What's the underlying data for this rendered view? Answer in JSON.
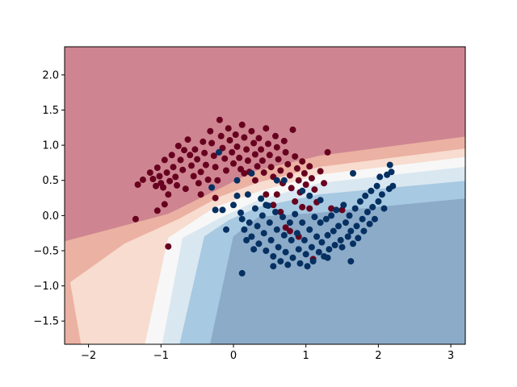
{
  "chart_data": {
    "type": "scatter",
    "title": "",
    "xlabel": "",
    "ylabel": "",
    "xlim": [
      -2.33,
      3.2
    ],
    "ylim": [
      -1.83,
      2.4
    ],
    "grid": false,
    "legend": "none",
    "x_ticks": [
      "−2",
      "−1",
      "0",
      "1",
      "2",
      "3"
    ],
    "x_tick_values": [
      -2,
      -1,
      0,
      1,
      2,
      3
    ],
    "y_ticks": [
      "−1.5",
      "−1.0",
      "−0.5",
      "0.0",
      "0.5",
      "1.0",
      "1.5",
      "2.0"
    ],
    "y_tick_values": [
      -1.5,
      -1.0,
      -0.5,
      0.0,
      0.5,
      1.0,
      1.5,
      2.0
    ],
    "decision_regions": [
      {
        "level": "dark red",
        "color": "#ce8591",
        "polygon": [
          [
            -2.33,
            2.4
          ],
          [
            3.2,
            2.4
          ],
          [
            3.2,
            1.12
          ],
          [
            1.2,
            0.85
          ],
          [
            0.3,
            0.63
          ],
          [
            -0.25,
            0.35
          ],
          [
            -0.9,
            0.02
          ],
          [
            -2.33,
            -0.37
          ]
        ]
      },
      {
        "level": "light red",
        "color": "#ebb1a2",
        "polygon": [
          [
            -2.33,
            -0.37
          ],
          [
            -0.9,
            0.02
          ],
          [
            -0.25,
            0.35
          ],
          [
            0.3,
            0.63
          ],
          [
            1.2,
            0.85
          ],
          [
            3.2,
            1.12
          ],
          [
            3.2,
            0.95
          ],
          [
            1.2,
            0.69
          ],
          [
            0.35,
            0.47
          ],
          [
            -0.2,
            0.26
          ],
          [
            -0.75,
            -0.05
          ],
          [
            -1.5,
            -0.4
          ],
          [
            -2.25,
            -0.95
          ],
          [
            -2.1,
            -1.83
          ],
          [
            -2.33,
            -1.83
          ]
        ]
      },
      {
        "level": "lightest red",
        "color": "#f7dccf",
        "polygon": [
          [
            -2.25,
            -0.95
          ],
          [
            -1.5,
            -0.4
          ],
          [
            -0.75,
            -0.05
          ],
          [
            -0.2,
            0.26
          ],
          [
            0.35,
            0.47
          ],
          [
            1.2,
            0.69
          ],
          [
            3.2,
            0.95
          ],
          [
            3.2,
            0.83
          ],
          [
            1.2,
            0.58
          ],
          [
            0.35,
            0.34
          ],
          [
            -0.25,
            0.12
          ],
          [
            -0.9,
            -0.32
          ],
          [
            -1.22,
            -1.83
          ],
          [
            -2.1,
            -1.83
          ]
        ]
      },
      {
        "level": "neutral",
        "color": "#f7f7f7",
        "polygon": [
          [
            -0.9,
            -0.32
          ],
          [
            -0.25,
            0.12
          ],
          [
            0.35,
            0.34
          ],
          [
            1.2,
            0.58
          ],
          [
            3.2,
            0.83
          ],
          [
            3.2,
            0.69
          ],
          [
            1.2,
            0.46
          ],
          [
            0.35,
            0.22
          ],
          [
            -0.15,
            -0.02
          ],
          [
            -0.7,
            -0.32
          ],
          [
            -0.98,
            -1.83
          ],
          [
            -1.22,
            -1.83
          ]
        ]
      },
      {
        "level": "lightest blue",
        "color": "#d9e7f1",
        "polygon": [
          [
            -0.7,
            -0.32
          ],
          [
            -0.15,
            -0.02
          ],
          [
            0.35,
            0.22
          ],
          [
            1.2,
            0.46
          ],
          [
            3.2,
            0.69
          ],
          [
            3.2,
            0.49
          ],
          [
            1.2,
            0.3
          ],
          [
            0.35,
            0.12
          ],
          [
            -0.05,
            -0.06
          ],
          [
            -0.4,
            -0.3
          ],
          [
            -0.74,
            -1.83
          ],
          [
            -0.98,
            -1.83
          ]
        ]
      },
      {
        "level": "light blue",
        "color": "#a7c9e1",
        "polygon": [
          [
            -0.4,
            -0.3
          ],
          [
            -0.05,
            -0.06
          ],
          [
            0.35,
            0.12
          ],
          [
            1.2,
            0.3
          ],
          [
            3.2,
            0.49
          ],
          [
            3.2,
            0.24
          ],
          [
            1.2,
            0.04
          ],
          [
            0.35,
            -0.02
          ],
          [
            0.0,
            -0.3
          ],
          [
            -0.32,
            -1.83
          ],
          [
            -0.74,
            -1.83
          ]
        ]
      },
      {
        "level": "dark blue",
        "color": "#8cabc9",
        "polygon": [
          [
            0.0,
            -0.3
          ],
          [
            0.35,
            -0.02
          ],
          [
            1.2,
            0.04
          ],
          [
            3.2,
            0.24
          ],
          [
            3.2,
            -1.83
          ],
          [
            -0.32,
            -1.83
          ]
        ]
      }
    ],
    "series": [
      {
        "class": "red",
        "color": "#67001f",
        "points": [
          [
            -1.32,
            0.44
          ],
          [
            -1.25,
            0.51
          ],
          [
            -1.15,
            0.61
          ],
          [
            -1.11,
            0.52
          ],
          [
            -1.07,
            0.42
          ],
          [
            -1.05,
            0.68
          ],
          [
            -1.02,
            0.56
          ],
          [
            -1.0,
            0.46
          ],
          [
            -0.97,
            0.4
          ],
          [
            -0.95,
            0.79
          ],
          [
            -0.92,
            0.61
          ],
          [
            -0.9,
            0.3
          ],
          [
            -0.88,
            0.49
          ],
          [
            -0.85,
            0.86
          ],
          [
            -0.83,
            0.69
          ],
          [
            -0.8,
            0.55
          ],
          [
            -0.78,
            0.43
          ],
          [
            -0.76,
            0.99
          ],
          [
            -0.73,
            0.79
          ],
          [
            -0.7,
            0.65
          ],
          [
            -0.68,
            0.93
          ],
          [
            -0.66,
            0.38
          ],
          [
            -0.63,
            1.08
          ],
          [
            -0.6,
            0.86
          ],
          [
            -0.58,
            0.71
          ],
          [
            -0.55,
            0.56
          ],
          [
            -0.53,
            0.94
          ],
          [
            -0.5,
            0.8
          ],
          [
            -0.48,
            0.46
          ],
          [
            -0.45,
            0.62
          ],
          [
            -0.42,
            1.05
          ],
          [
            -0.4,
            0.89
          ],
          [
            -0.38,
            0.72
          ],
          [
            -0.35,
            0.51
          ],
          [
            -0.32,
            1.2
          ],
          [
            -0.3,
            1.03
          ],
          [
            -0.27,
            0.85
          ],
          [
            -0.25,
            0.69
          ],
          [
            -0.22,
            0.5
          ],
          [
            -0.19,
            1.36
          ],
          [
            -0.17,
            1.13
          ],
          [
            -0.15,
            0.96
          ],
          [
            -0.12,
            0.81
          ],
          [
            -0.1,
            0.64
          ],
          [
            -0.07,
            1.24
          ],
          [
            -0.05,
            1.07
          ],
          [
            -0.02,
            0.9
          ],
          [
            0.0,
            0.74
          ],
          [
            0.03,
            1.15
          ],
          [
            0.05,
            0.98
          ],
          [
            0.08,
            0.82
          ],
          [
            0.1,
            0.66
          ],
          [
            0.12,
            1.29
          ],
          [
            0.15,
            1.11
          ],
          [
            0.18,
            0.94
          ],
          [
            0.2,
            0.78
          ],
          [
            0.22,
            0.62
          ],
          [
            0.25,
            1.2
          ],
          [
            0.28,
            1.03
          ],
          [
            0.3,
            0.87
          ],
          [
            0.33,
            0.7
          ],
          [
            0.35,
            1.1
          ],
          [
            0.38,
            0.94
          ],
          [
            0.4,
            0.78
          ],
          [
            0.42,
            0.61
          ],
          [
            0.45,
            1.24
          ],
          [
            0.48,
            1.02
          ],
          [
            0.5,
            0.86
          ],
          [
            0.52,
            0.69
          ],
          [
            0.55,
            0.55
          ],
          [
            0.58,
            1.13
          ],
          [
            0.6,
            0.97
          ],
          [
            0.62,
            0.8
          ],
          [
            0.65,
            0.64
          ],
          [
            0.68,
            0.46
          ],
          [
            0.7,
            1.06
          ],
          [
            0.72,
            0.9
          ],
          [
            0.75,
            0.73
          ],
          [
            0.78,
            0.57
          ],
          [
            0.8,
            0.39
          ],
          [
            0.82,
            1.22
          ],
          [
            0.85,
            0.84
          ],
          [
            0.88,
            0.67
          ],
          [
            0.9,
            0.5
          ],
          [
            0.92,
            0.33
          ],
          [
            0.95,
            0.77
          ],
          [
            0.98,
            0.6
          ],
          [
            1.0,
            0.44
          ],
          [
            1.05,
            0.7
          ],
          [
            1.08,
            0.53
          ],
          [
            1.12,
            0.37
          ],
          [
            1.15,
            0.19
          ],
          [
            1.2,
            0.63
          ],
          [
            1.25,
            0.46
          ],
          [
            1.3,
            0.9
          ],
          [
            -0.9,
            -0.44
          ],
          [
            -1.05,
            0.07
          ],
          [
            -0.95,
            0.16
          ],
          [
            -1.35,
            -0.05
          ],
          [
            0.45,
            0.3
          ],
          [
            0.72,
            -0.17
          ],
          [
            0.78,
            -0.22
          ],
          [
            0.9,
            -0.3
          ],
          [
            1.05,
            0.1
          ],
          [
            1.35,
            0.1
          ],
          [
            1.5,
            0.08
          ],
          [
            1.1,
            -0.62
          ],
          [
            0.3,
            0.5
          ],
          [
            0.15,
            0.6
          ],
          [
            0.55,
            0.15
          ],
          [
            0.65,
            0.05
          ],
          [
            0.6,
            0.3
          ],
          [
            -0.45,
            0.3
          ],
          [
            -0.25,
            0.25
          ],
          [
            0.95,
            0.12
          ],
          [
            0.85,
            0.2
          ]
        ]
      },
      {
        "class": "blue",
        "color": "#053061",
        "points": [
          [
            -0.2,
            0.9
          ],
          [
            -0.3,
            0.4
          ],
          [
            -0.25,
            0.08
          ],
          [
            -0.15,
            0.08
          ],
          [
            -0.1,
            -0.2
          ],
          [
            0.0,
            0.15
          ],
          [
            0.05,
            0.28
          ],
          [
            0.1,
            0.04
          ],
          [
            0.12,
            -0.05
          ],
          [
            0.15,
            -0.2
          ],
          [
            0.18,
            -0.35
          ],
          [
            0.2,
            0.3
          ],
          [
            0.22,
            -0.1
          ],
          [
            0.25,
            -0.3
          ],
          [
            0.28,
            -0.48
          ],
          [
            0.3,
            0.1
          ],
          [
            0.33,
            -0.15
          ],
          [
            0.35,
            -0.4
          ],
          [
            0.38,
            0.24
          ],
          [
            0.4,
            0.0
          ],
          [
            0.42,
            -0.25
          ],
          [
            0.45,
            -0.5
          ],
          [
            0.48,
            0.14
          ],
          [
            0.5,
            -0.1
          ],
          [
            0.52,
            -0.35
          ],
          [
            0.55,
            -0.58
          ],
          [
            0.58,
            0.05
          ],
          [
            0.6,
            -0.2
          ],
          [
            0.62,
            -0.45
          ],
          [
            0.65,
            -0.65
          ],
          [
            0.68,
            -0.02
          ],
          [
            0.7,
            -0.28
          ],
          [
            0.72,
            -0.52
          ],
          [
            0.75,
            -0.7
          ],
          [
            0.78,
            -0.1
          ],
          [
            0.8,
            -0.35
          ],
          [
            0.82,
            -0.6
          ],
          [
            0.85,
            0.02
          ],
          [
            0.88,
            -0.25
          ],
          [
            0.9,
            -0.48
          ],
          [
            0.92,
            -0.68
          ],
          [
            0.95,
            -0.1
          ],
          [
            0.98,
            -0.35
          ],
          [
            1.0,
            -0.55
          ],
          [
            1.02,
            -0.72
          ],
          [
            1.05,
            -0.2
          ],
          [
            1.08,
            -0.45
          ],
          [
            1.1,
            -0.65
          ],
          [
            1.12,
            -0.02
          ],
          [
            1.15,
            -0.3
          ],
          [
            1.18,
            -0.52
          ],
          [
            1.2,
            -0.1
          ],
          [
            1.22,
            -0.38
          ],
          [
            1.25,
            -0.58
          ],
          [
            1.28,
            -0.05
          ],
          [
            1.3,
            -0.28
          ],
          [
            1.32,
            -0.48
          ],
          [
            1.35,
            0.0
          ],
          [
            1.38,
            -0.22
          ],
          [
            1.4,
            -0.42
          ],
          [
            1.42,
            0.08
          ],
          [
            1.45,
            -0.15
          ],
          [
            1.48,
            -0.35
          ],
          [
            1.5,
            -0.45
          ],
          [
            1.52,
            0.15
          ],
          [
            1.55,
            -0.1
          ],
          [
            1.58,
            -0.3
          ],
          [
            1.6,
            0.0
          ],
          [
            1.62,
            -0.22
          ],
          [
            1.65,
            -0.4
          ],
          [
            1.68,
            0.1
          ],
          [
            1.7,
            -0.15
          ],
          [
            1.72,
            -0.32
          ],
          [
            1.75,
            0.2
          ],
          [
            1.78,
            -0.05
          ],
          [
            1.8,
            -0.22
          ],
          [
            1.82,
            0.28
          ],
          [
            1.85,
            0.05
          ],
          [
            1.88,
            -0.12
          ],
          [
            1.9,
            0.35
          ],
          [
            1.92,
            0.12
          ],
          [
            1.95,
            -0.05
          ],
          [
            1.98,
            0.42
          ],
          [
            2.0,
            0.2
          ],
          [
            2.02,
            0.55
          ],
          [
            2.05,
            0.3
          ],
          [
            2.08,
            0.1
          ],
          [
            2.12,
            0.58
          ],
          [
            2.15,
            0.38
          ],
          [
            2.18,
            0.62
          ],
          [
            2.2,
            0.42
          ],
          [
            2.16,
            0.72
          ],
          [
            1.65,
            0.6
          ],
          [
            1.62,
            -0.65
          ],
          [
            1.3,
            -0.6
          ],
          [
            0.55,
            -0.72
          ],
          [
            0.12,
            -0.82
          ],
          [
            0.6,
            0.5
          ],
          [
            0.7,
            0.5
          ],
          [
            0.45,
            0.15
          ],
          [
            0.95,
            0.35
          ],
          [
            1.05,
            0.28
          ],
          [
            1.2,
            0.22
          ],
          [
            0.25,
            0.6
          ],
          [
            0.05,
            0.5
          ]
        ]
      }
    ]
  }
}
